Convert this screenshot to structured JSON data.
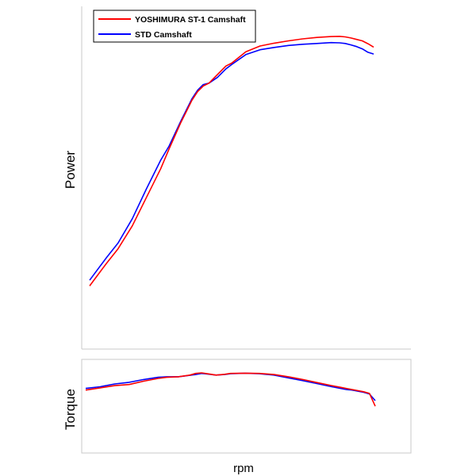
{
  "chart_data": [
    {
      "type": "line",
      "ylabel": "Power",
      "xlabel": "",
      "x": [
        0,
        3,
        6,
        10,
        15,
        20,
        25,
        28,
        32,
        36,
        38,
        40,
        42,
        45,
        48,
        50,
        55,
        60,
        65,
        70,
        75,
        80,
        85,
        88,
        90,
        92,
        94,
        96,
        98,
        100
      ],
      "xlim": [
        0,
        100
      ],
      "ylim": [
        0,
        100
      ],
      "grid": false,
      "legend": "top-left",
      "series": [
        {
          "name": "YOSHIMURA ST-1 Camshaft",
          "color": "#ff0000",
          "values": [
            11,
            15,
            19,
            24,
            32,
            42,
            52,
            59,
            68,
            76,
            79,
            81,
            82,
            85,
            88,
            89,
            93,
            95,
            96,
            96.8,
            97.5,
            98,
            98.3,
            98.4,
            98.2,
            97.8,
            97.3,
            96.8,
            95.8,
            94.6
          ]
        },
        {
          "name": "STD Camshaft",
          "color": "#0000ff",
          "values": [
            13,
            17,
            21,
            26,
            34.5,
            45,
            55,
            60,
            68.5,
            76.5,
            79.5,
            81.5,
            82,
            84,
            87,
            88.5,
            92,
            93.7,
            94.5,
            95.2,
            95.6,
            95.9,
            96.2,
            96.1,
            95.9,
            95.4,
            94.8,
            94,
            92.8,
            92.2
          ]
        }
      ]
    },
    {
      "type": "line",
      "ylabel": "Torque",
      "xlabel": "rpm",
      "x": [
        0,
        5,
        10,
        15,
        20,
        25,
        28,
        32,
        36,
        38,
        40,
        42,
        45,
        48,
        50,
        55,
        60,
        65,
        70,
        75,
        80,
        85,
        88,
        90,
        92,
        94,
        96,
        98,
        100
      ],
      "xlim": [
        0,
        100
      ],
      "ylim": [
        0,
        100
      ],
      "grid": false,
      "series": [
        {
          "name": "YOSHIMURA ST-1 Camshaft",
          "color": "#ff0000",
          "values": [
            59,
            63,
            67,
            69,
            75,
            80,
            82,
            83,
            86,
            89,
            90,
            88.5,
            86,
            87.5,
            89,
            89.5,
            89,
            87,
            83,
            78,
            72.5,
            67,
            64,
            62,
            60,
            58,
            56,
            53,
            30
          ]
        },
        {
          "name": "STD Camshaft",
          "color": "#0000ff",
          "values": [
            62,
            65,
            70,
            73,
            78,
            82,
            83,
            83,
            85.5,
            87,
            89,
            88,
            86,
            87,
            88.5,
            89.5,
            88.5,
            86,
            81,
            76,
            70.5,
            65,
            62,
            60,
            59,
            57,
            55,
            52,
            40
          ]
        }
      ]
    }
  ],
  "legend": {
    "entries": [
      {
        "label": "YOSHIMURA ST-1 Camshaft",
        "color": "#ff0000"
      },
      {
        "label": "STD Camshaft",
        "color": "#0000ff"
      }
    ]
  },
  "labels": {
    "power_axis": "Power",
    "torque_axis": "Torque",
    "x_axis": "rpm"
  }
}
